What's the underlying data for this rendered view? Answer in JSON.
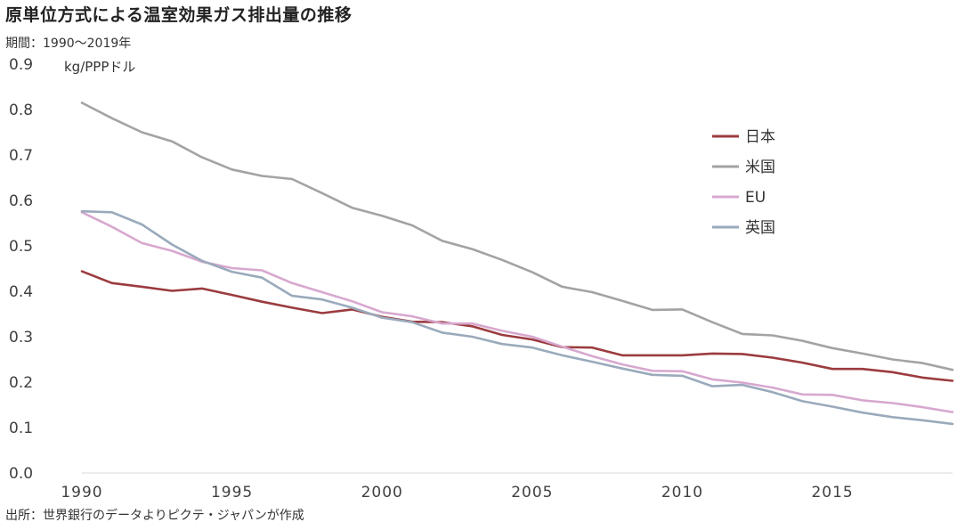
{
  "header": {
    "title": "原単位方式による温室効果ガス排出量の推移",
    "period": "期間：1990～2019年"
  },
  "footer": {
    "source": "出所：世界銀行のデータよりピクテ・ジャパンが作成"
  },
  "chart_data": {
    "type": "line",
    "title": "原単位方式による温室効果ガス排出量の推移",
    "subtitle": "期間：1990～2019年",
    "ylabel": "kg/PPPドル",
    "xlabel": "",
    "xlim": [
      1990,
      2019
    ],
    "ylim": [
      0.0,
      0.9
    ],
    "x": [
      1990,
      1991,
      1992,
      1993,
      1994,
      1995,
      1996,
      1997,
      1998,
      1999,
      2000,
      2001,
      2002,
      2003,
      2004,
      2005,
      2006,
      2007,
      2008,
      2009,
      2010,
      2011,
      2012,
      2013,
      2014,
      2015,
      2016,
      2017,
      2018,
      2019
    ],
    "x_ticks": [
      "1990",
      "1995",
      "2000",
      "2005",
      "2010",
      "2015"
    ],
    "x_tick_values": [
      1990,
      1995,
      2000,
      2005,
      2010,
      2015
    ],
    "y_ticks": [
      "0.0",
      "0.1",
      "0.2",
      "0.3",
      "0.4",
      "0.5",
      "0.6",
      "0.7",
      "0.8",
      "0.9"
    ],
    "y_tick_values": [
      0.0,
      0.1,
      0.2,
      0.3,
      0.4,
      0.5,
      0.6,
      0.7,
      0.8,
      0.9
    ],
    "legend_position": "top-right",
    "series": [
      {
        "name": "日本",
        "color": "#9b3b3f",
        "values": [
          0.444,
          0.418,
          0.41,
          0.401,
          0.406,
          0.392,
          0.377,
          0.364,
          0.352,
          0.36,
          0.344,
          0.333,
          0.332,
          0.323,
          0.304,
          0.294,
          0.277,
          0.276,
          0.259,
          0.259,
          0.259,
          0.263,
          0.262,
          0.254,
          0.243,
          0.229,
          0.229,
          0.222,
          0.21,
          0.203
        ]
      },
      {
        "name": "米国",
        "color": "#a3a3a3",
        "values": [
          0.815,
          0.781,
          0.75,
          0.73,
          0.695,
          0.668,
          0.654,
          0.647,
          0.616,
          0.584,
          0.566,
          0.545,
          0.511,
          0.493,
          0.469,
          0.442,
          0.41,
          0.398,
          0.379,
          0.359,
          0.36,
          0.332,
          0.306,
          0.303,
          0.291,
          0.275,
          0.263,
          0.25,
          0.242,
          0.227
        ]
      },
      {
        "name": "EU",
        "color": "#d7a8cf",
        "values": [
          0.574,
          0.542,
          0.506,
          0.489,
          0.465,
          0.451,
          0.446,
          0.418,
          0.398,
          0.378,
          0.354,
          0.345,
          0.329,
          0.329,
          0.313,
          0.3,
          0.278,
          0.257,
          0.239,
          0.225,
          0.224,
          0.206,
          0.199,
          0.188,
          0.173,
          0.172,
          0.16,
          0.154,
          0.145,
          0.134
        ]
      },
      {
        "name": "英国",
        "color": "#9aaabc",
        "values": [
          0.576,
          0.574,
          0.547,
          0.503,
          0.467,
          0.443,
          0.43,
          0.39,
          0.382,
          0.364,
          0.342,
          0.332,
          0.309,
          0.3,
          0.284,
          0.276,
          0.259,
          0.245,
          0.23,
          0.216,
          0.214,
          0.191,
          0.194,
          0.178,
          0.158,
          0.146,
          0.133,
          0.123,
          0.116,
          0.108
        ]
      }
    ]
  }
}
